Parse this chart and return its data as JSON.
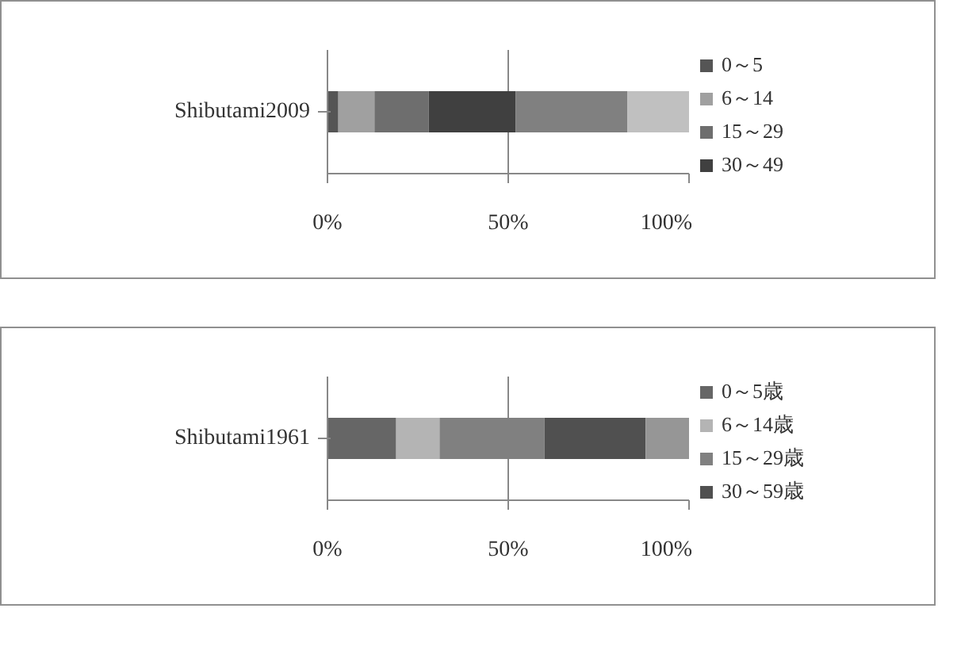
{
  "chart_data": [
    {
      "type": "bar",
      "orientation": "horizontal",
      "stacked": true,
      "categories": [
        "Shibutami2009"
      ],
      "xlim": [
        0,
        100
      ],
      "xticks": [
        {
          "value": 0,
          "label": "0%"
        },
        {
          "value": 50,
          "label": "50%"
        },
        {
          "value": 100,
          "label": "100%"
        }
      ],
      "grid": "x",
      "legend": "right",
      "series": [
        {
          "name": "0～5",
          "color": "#555555",
          "values": [
            3
          ]
        },
        {
          "name": "6～14",
          "color": "#a0a0a0",
          "values": [
            10
          ]
        },
        {
          "name": "15～29",
          "color": "#6e6e6e",
          "values": [
            15
          ]
        },
        {
          "name": "30～49",
          "color": "#404040",
          "values": [
            24
          ]
        },
        {
          "color": "#808080",
          "values": [
            31
          ]
        },
        {
          "color": "#c0c0c0",
          "values": [
            17
          ]
        }
      ]
    },
    {
      "type": "bar",
      "orientation": "horizontal",
      "stacked": true,
      "categories": [
        "Shibutami1961"
      ],
      "xlim": [
        0,
        100
      ],
      "xticks": [
        {
          "value": 0,
          "label": "0%"
        },
        {
          "value": 50,
          "label": "50%"
        },
        {
          "value": 100,
          "label": "100%"
        }
      ],
      "grid": "x",
      "legend": "right",
      "series": [
        {
          "name": "0～5歳",
          "color": "#666666",
          "values": [
            19
          ]
        },
        {
          "name": "6～14歳",
          "color": "#b4b4b4",
          "values": [
            12
          ]
        },
        {
          "name": "15～29歳",
          "color": "#808080",
          "values": [
            29
          ]
        },
        {
          "name": "30～59歳",
          "color": "#505050",
          "values": [
            28
          ]
        },
        {
          "color": "#969696",
          "values": [
            12
          ]
        }
      ]
    }
  ]
}
